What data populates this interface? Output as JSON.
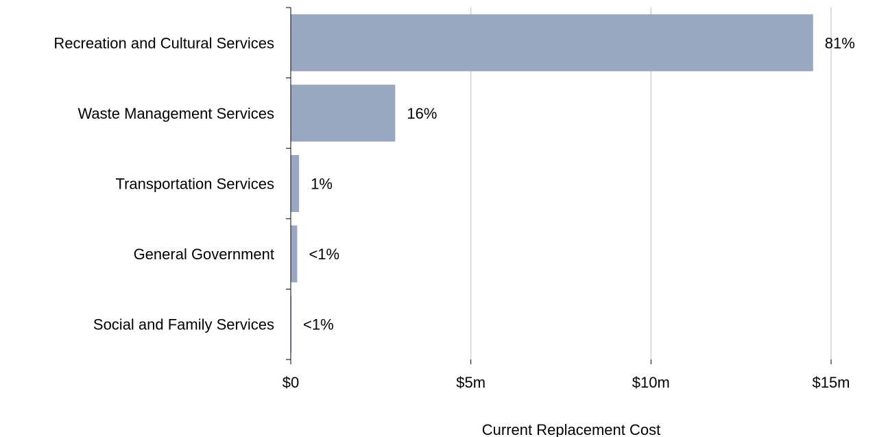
{
  "chart_data": {
    "type": "bar",
    "orientation": "horizontal",
    "categories": [
      "Recreation and Cultural Services",
      "Waste Management Services",
      "Transportation Services",
      "General Government",
      "Social and Family Services"
    ],
    "values": [
      14500000,
      2900000,
      230000,
      180000,
      20000
    ],
    "data_labels": [
      "81%",
      "16%",
      "1%",
      "<1%",
      "<1%"
    ],
    "xlabel": "Current Replacement Cost",
    "ylabel": "",
    "xlim": [
      0,
      15000000
    ],
    "x_ticks": [
      0,
      5000000,
      10000000,
      15000000
    ],
    "x_tick_labels": [
      "$0",
      "$5m",
      "$10m",
      "$15m"
    ],
    "grid": "vertical",
    "legend": "none",
    "colors": {
      "bar": "#9aa7c0",
      "grid": "#d0d0d0",
      "axis": "#000000",
      "text": "#000000"
    }
  }
}
